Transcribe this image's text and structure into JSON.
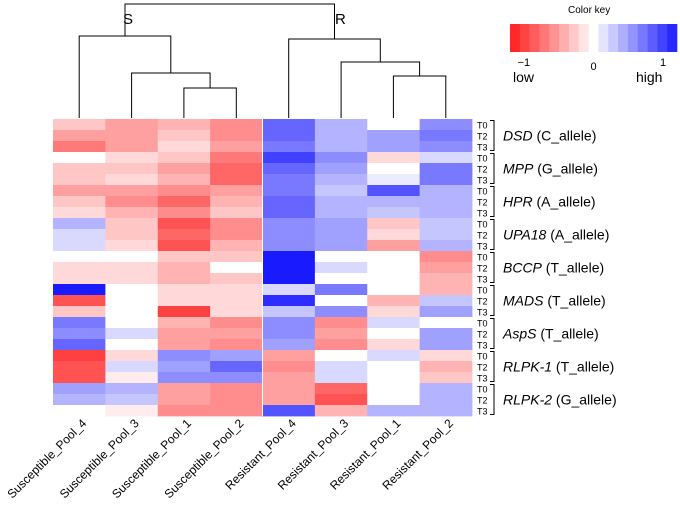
{
  "chart_data": {
    "type": "heatmap",
    "title": "",
    "columns": [
      "Susceptible_Pool_4",
      "Susceptible_Pool_3",
      "Susceptible_Pool_1",
      "Susceptible_Pool_2",
      "Resistant_Pool_4",
      "Resistant_Pool_3",
      "Resistant_Pool_1",
      "Resistant_Pool_2"
    ],
    "genes": [
      {
        "name": "DSD",
        "allele": "(C_allele)"
      },
      {
        "name": "MPP",
        "allele": "(G_allele)"
      },
      {
        "name": "HPR",
        "allele": "(A_allele)"
      },
      {
        "name": "UPA18",
        "allele": "(A_allele)"
      },
      {
        "name": "BCCP",
        "allele": "(T_allele)"
      },
      {
        "name": "MADS",
        "allele": "(T_allele)"
      },
      {
        "name": "AspS",
        "allele": "(T_allele)"
      },
      {
        "name": "RLPK-1",
        "allele": "(T_allele)"
      },
      {
        "name": "RLPK-2",
        "allele": "(G_allele)"
      }
    ],
    "timepoints": [
      "T0",
      "T2",
      "T3"
    ],
    "values": [
      [
        -0.3,
        -0.5,
        -0.4,
        -0.6,
        0.8,
        0.4,
        0.0,
        0.6
      ],
      [
        -0.5,
        -0.5,
        -0.3,
        -0.6,
        0.8,
        0.4,
        0.5,
        0.7
      ],
      [
        -0.7,
        -0.5,
        -0.2,
        -0.5,
        0.7,
        0.4,
        0.5,
        0.6
      ],
      [
        0.0,
        -0.2,
        -0.3,
        -0.7,
        1.0,
        0.6,
        -0.2,
        0.2
      ],
      [
        -0.3,
        -0.3,
        -0.5,
        -0.8,
        0.8,
        0.5,
        0.0,
        0.7
      ],
      [
        -0.3,
        -0.2,
        -0.4,
        -0.8,
        0.7,
        0.4,
        0.1,
        0.7
      ],
      [
        -0.5,
        -0.5,
        -0.6,
        -0.5,
        0.7,
        0.3,
        0.9,
        0.4
      ],
      [
        -0.3,
        -0.6,
        -0.8,
        -0.4,
        0.8,
        0.4,
        0.4,
        0.4
      ],
      [
        -0.2,
        -0.4,
        -0.6,
        -0.3,
        0.8,
        0.4,
        0.3,
        0.4
      ],
      [
        0.4,
        -0.3,
        -0.9,
        -0.6,
        0.6,
        0.5,
        -0.3,
        0.3
      ],
      [
        0.2,
        -0.3,
        -0.8,
        -0.6,
        0.6,
        0.5,
        -0.2,
        0.3
      ],
      [
        0.2,
        -0.2,
        -0.9,
        -0.4,
        0.6,
        0.5,
        -0.5,
        0.4
      ],
      [
        0.0,
        0.0,
        -0.3,
        -0.3,
        1.2,
        0.0,
        0.0,
        -0.6
      ],
      [
        -0.2,
        -0.2,
        -0.4,
        0.0,
        1.2,
        0.2,
        0.0,
        -0.5
      ],
      [
        -0.2,
        -0.2,
        -0.4,
        -0.3,
        1.2,
        0.0,
        0.0,
        -0.4
      ],
      [
        1.2,
        0.0,
        -0.2,
        -0.2,
        0.2,
        0.7,
        0.0,
        -0.4
      ],
      [
        -0.9,
        0.0,
        -0.2,
        -0.2,
        1.1,
        0.0,
        -0.4,
        0.3
      ],
      [
        -0.3,
        0.0,
        -1.0,
        -0.2,
        0.3,
        0.6,
        -0.2,
        0.5
      ],
      [
        0.7,
        0.0,
        -0.4,
        -0.6,
        0.6,
        -0.6,
        0.2,
        0.0
      ],
      [
        0.6,
        0.2,
        -0.5,
        -0.5,
        0.6,
        -0.5,
        0.0,
        0.5
      ],
      [
        0.8,
        0.0,
        -0.5,
        -0.6,
        0.5,
        -0.6,
        -0.2,
        0.5
      ],
      [
        -1.0,
        -0.2,
        0.6,
        0.5,
        -0.5,
        0.0,
        0.2,
        -0.2
      ],
      [
        -0.9,
        0.2,
        0.5,
        0.8,
        -0.6,
        0.2,
        0.0,
        -0.4
      ],
      [
        -0.9,
        -0.1,
        0.6,
        0.6,
        -0.5,
        0.2,
        0.0,
        -0.3
      ],
      [
        0.5,
        0.4,
        -0.5,
        -0.6,
        -0.5,
        -0.8,
        0.0,
        0.4
      ],
      [
        0.4,
        0.3,
        -0.5,
        -0.6,
        -0.5,
        -0.9,
        0.0,
        0.4
      ],
      [
        0.0,
        -0.1,
        -0.6,
        -0.6,
        0.9,
        -0.4,
        0.4,
        0.4
      ]
    ],
    "clusters": {
      "left": "S",
      "right": "R"
    },
    "color_key": {
      "title": "Color key",
      "ticks": [
        "−1",
        "0",
        "1"
      ],
      "low_label": "low",
      "high_label": "high",
      "range": [
        -1.2,
        1.2
      ],
      "low_color": "#ff1a1a",
      "mid_color": "#ffffff",
      "high_color": "#1a1aff"
    }
  }
}
